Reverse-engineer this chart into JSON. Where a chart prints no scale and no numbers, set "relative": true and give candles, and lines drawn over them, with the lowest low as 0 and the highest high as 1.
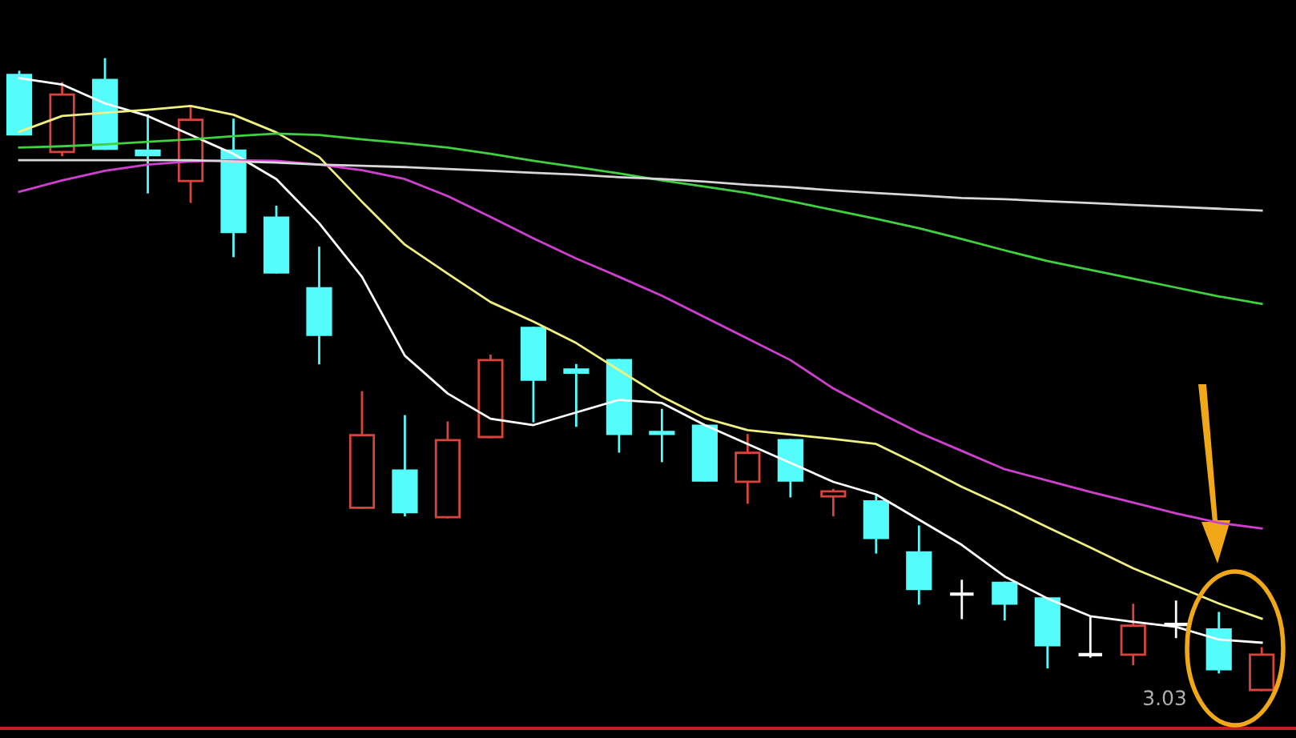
{
  "chart_data": {
    "type": "candlestick",
    "relative": true,
    "categories": [
      null,
      null,
      null,
      null,
      null,
      null,
      null,
      null,
      null,
      null,
      null,
      null,
      null,
      null,
      null,
      null,
      null,
      null,
      null,
      null,
      null,
      null,
      null,
      null,
      null,
      null,
      null,
      null,
      null,
      null
    ],
    "ohlc": [
      [
        0.975,
        0.98,
        0.881,
        0.881
      ],
      [
        0.853,
        0.962,
        0.848,
        0.944
      ],
      [
        0.967,
        1,
        0.858,
        0.858
      ],
      [
        0.855,
        0.911,
        0.789,
        0.848
      ],
      [
        0.807,
        0.924,
        0.774,
        0.904
      ],
      [
        0.855,
        0.904,
        0.688,
        0.726
      ],
      [
        0.749,
        0.766,
        0.662,
        0.662
      ],
      [
        0.637,
        0.701,
        0.518,
        0.563
      ],
      [
        0.289,
        0.472,
        0.289,
        0.404
      ],
      [
        0.348,
        0.434,
        0.277,
        0.282
      ],
      [
        0.274,
        0.424,
        0.274,
        0.396
      ],
      [
        0.401,
        0.53,
        0.401,
        0.523
      ],
      [
        0.574,
        0.574,
        0.426,
        0.492
      ],
      [
        0.508,
        0.515,
        0.419,
        0.503
      ],
      [
        0.523,
        0.523,
        0.378,
        0.406
      ],
      [
        0.409,
        0.444,
        0.363,
        0.406
      ],
      [
        0.419,
        0.419,
        0.332,
        0.332
      ],
      [
        0.33,
        0.404,
        0.297,
        0.376
      ],
      [
        0.396,
        0.396,
        0.307,
        0.332
      ],
      [
        0.307,
        0.317,
        0.277,
        0.315
      ],
      [
        0.299,
        0.307,
        0.218,
        0.241
      ],
      [
        0.218,
        0.259,
        0.137,
        0.16
      ],
      [
        0.152,
        0.173,
        0.114,
        0.152
      ],
      [
        0.17,
        0.17,
        0.112,
        0.137
      ],
      [
        0.145,
        0.145,
        0.036,
        0.071
      ],
      [
        0.056,
        0.114,
        0.053,
        0.056
      ],
      [
        0.056,
        0.135,
        0.041,
        0.102
      ],
      [
        0.104,
        0.14,
        0.084,
        0.104
      ],
      [
        0.096,
        0.122,
        0.028,
        0.033
      ],
      [
        0,
        0.066,
        0,
        0.056
      ]
    ],
    "colors": [
      "#54fcfc",
      "#d9443c",
      "#54fcfc",
      "#54fcfc",
      "#d9443c",
      "#54fcfc",
      "#54fcfc",
      "#54fcfc",
      "#d9443c",
      "#54fcfc",
      "#d9443c",
      "#d9443c",
      "#54fcfc",
      "#54fcfc",
      "#54fcfc",
      "#54fcfc",
      "#54fcfc",
      "#d9443c",
      "#54fcfc",
      "#d9443c",
      "#54fcfc",
      "#54fcfc",
      "#ffffff",
      "#54fcfc",
      "#54fcfc",
      "#ffffff",
      "#d9443c",
      "#ffffff",
      "#54fcfc",
      "#d9443c"
    ],
    "series": [
      {
        "type": "line",
        "color": "#ffffff",
        "values": [
          0.97,
          0.96,
          0.93,
          0.91,
          0.88,
          0.85,
          0.81,
          0.74,
          0.655,
          0.53,
          0.47,
          0.43,
          0.42,
          0.44,
          0.46,
          0.455,
          0.42,
          0.39,
          0.36,
          0.33,
          0.31,
          0.27,
          0.23,
          0.18,
          0.145,
          0.117,
          0.108,
          0.1,
          0.08,
          0.075
        ]
      },
      {
        "type": "line",
        "color": "#f0f080",
        "values": [
          0.885,
          0.91,
          0.915,
          0.92,
          0.926,
          0.912,
          0.884,
          0.845,
          0.774,
          0.706,
          0.66,
          0.615,
          0.584,
          0.55,
          0.507,
          0.465,
          0.431,
          0.412,
          0.405,
          0.398,
          0.39,
          0.357,
          0.322,
          0.291,
          0.258,
          0.226,
          0.193,
          0.165,
          0.137,
          0.113
        ]
      },
      {
        "type": "line",
        "color": "#d040d0",
        "values": [
          0.79,
          0.808,
          0.823,
          0.833,
          0.838,
          0.84,
          0.839,
          0.833,
          0.824,
          0.81,
          0.783,
          0.75,
          0.716,
          0.684,
          0.655,
          0.625,
          0.591,
          0.557,
          0.523,
          0.478,
          0.442,
          0.408,
          0.379,
          0.35,
          0.332,
          0.314,
          0.297,
          0.28,
          0.265,
          0.256
        ]
      },
      {
        "type": "line",
        "color": "#40d040",
        "values": [
          0.86,
          0.862,
          0.865,
          0.869,
          0.873,
          0.878,
          0.882,
          0.88,
          0.873,
          0.867,
          0.86,
          0.85,
          0.839,
          0.829,
          0.819,
          0.808,
          0.798,
          0.788,
          0.775,
          0.761,
          0.747,
          0.732,
          0.715,
          0.697,
          0.68,
          0.666,
          0.652,
          0.638,
          0.624,
          0.612
        ]
      },
      {
        "type": "line",
        "color": "#d8d8d8",
        "values": [
          0.84,
          0.84,
          0.84,
          0.84,
          0.84,
          0.838,
          0.836,
          0.833,
          0.831,
          0.829,
          0.826,
          0.823,
          0.82,
          0.817,
          0.813,
          0.81,
          0.806,
          0.801,
          0.797,
          0.792,
          0.788,
          0.784,
          0.78,
          0.778,
          0.775,
          0.772,
          0.769,
          0.766,
          0.763,
          0.76
        ]
      }
    ],
    "annotations": [
      "3.03"
    ]
  }
}
